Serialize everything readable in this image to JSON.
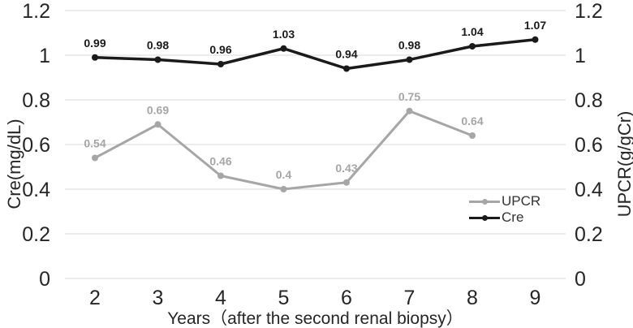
{
  "chart_data": {
    "type": "line",
    "title": "",
    "categories": [
      "2",
      "3",
      "4",
      "5",
      "6",
      "7",
      "8",
      "9"
    ],
    "series": [
      {
        "name": "UPCR",
        "values": [
          0.54,
          0.69,
          0.46,
          0.4,
          0.43,
          0.75,
          0.64,
          null
        ],
        "labels": [
          "0.54",
          "0.69",
          "0.46",
          "0.4",
          "0.43",
          "0.75",
          "0.64"
        ],
        "color": "#a6a6a6"
      },
      {
        "name": "Cre",
        "values": [
          0.99,
          0.98,
          0.96,
          1.03,
          0.94,
          0.98,
          1.04,
          1.07
        ],
        "labels": [
          "0.99",
          "0.98",
          "0.96",
          "1.03",
          "0.94",
          "0.98",
          "1.04",
          "1.07"
        ],
        "color": "#1a1a1a"
      }
    ],
    "xlabel": "Years（after the second renal biopsy）",
    "ylabel_left": "Cre(mg/dL)",
    "ylabel_right": "UPCR(g/gCr)",
    "ylim": [
      0,
      1.2
    ],
    "yticks": [
      1.2,
      1,
      0.8,
      0.6,
      0.4,
      0.2,
      0
    ],
    "ytick_labels": [
      "1.2",
      "1",
      "0.8",
      "0.6",
      "0.4",
      "0.2",
      "0"
    ],
    "grid": true,
    "gridline_color": "#d9d9d9",
    "tick_color": "#262626",
    "legend": {
      "position": "right-middle",
      "entries": [
        "UPCR",
        "Cre"
      ]
    }
  }
}
